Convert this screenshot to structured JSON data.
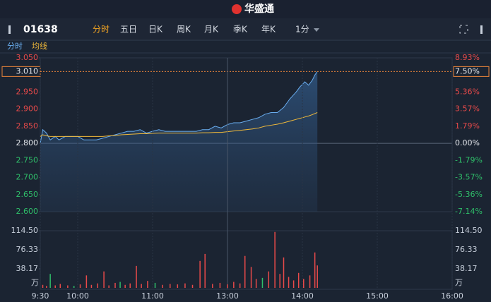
{
  "header": {
    "logo": "华盛通"
  },
  "toolbar": {
    "code": "01638",
    "tabs": [
      "分时",
      "五日",
      "日K",
      "周K",
      "月K",
      "季K",
      "年K",
      "1分"
    ],
    "active": 0
  },
  "chart_data": [
    {
      "type": "line",
      "x": [
        0,
        2,
        5,
        8,
        12,
        15,
        20,
        25,
        30,
        35,
        40,
        45,
        50,
        55,
        60,
        65,
        70,
        75,
        80,
        85,
        90,
        95,
        100,
        105,
        110,
        115,
        120,
        125,
        130,
        135,
        140,
        145,
        150,
        155,
        160,
        165,
        170,
        175,
        180,
        185,
        190,
        195,
        200,
        205,
        208,
        212,
        215,
        218,
        220,
        222
      ],
      "series": [
        {
          "name": "分时",
          "color": "#6aaef0",
          "values": [
            2.8,
            2.84,
            2.83,
            2.81,
            2.82,
            2.81,
            2.82,
            2.82,
            2.82,
            2.81,
            2.81,
            2.81,
            2.815,
            2.82,
            2.825,
            2.83,
            2.835,
            2.835,
            2.84,
            2.83,
            2.835,
            2.84,
            2.835,
            2.835,
            2.835,
            2.835,
            2.835,
            2.835,
            2.84,
            2.84,
            2.85,
            2.845,
            2.855,
            2.86,
            2.86,
            2.865,
            2.87,
            2.875,
            2.885,
            2.89,
            2.89,
            2.905,
            2.93,
            2.95,
            2.965,
            2.98,
            2.97,
            2.985,
            3.0,
            3.01
          ]
        },
        {
          "name": "均线",
          "color": "#f0b93a",
          "values": [
            2.82,
            2.825,
            2.822,
            2.82,
            2.82,
            2.82,
            2.82,
            2.82,
            2.82,
            2.82,
            2.82,
            2.82,
            2.82,
            2.822,
            2.823,
            2.825,
            2.826,
            2.827,
            2.828,
            2.828,
            2.829,
            2.83,
            2.83,
            2.83,
            2.83,
            2.83,
            2.83,
            2.83,
            2.831,
            2.831,
            2.832,
            2.832,
            2.834,
            2.836,
            2.838,
            2.84,
            2.842,
            2.845,
            2.85,
            2.853,
            2.856,
            2.86,
            2.865,
            2.87,
            2.873,
            2.877,
            2.88,
            2.884,
            2.887,
            2.89
          ]
        }
      ],
      "xlim": [
        0,
        330
      ],
      "ylim": [
        2.6,
        3.05
      ],
      "yticks": [
        {
          "value": 3.05,
          "label": "3.050"
        },
        {
          "value": 2.95,
          "label": "2.950"
        },
        {
          "value": 2.9,
          "label": "2.900"
        },
        {
          "value": 2.85,
          "label": "2.850"
        },
        {
          "value": 2.8,
          "label": "2.800"
        },
        {
          "value": 2.75,
          "label": "2.750"
        },
        {
          "value": 2.7,
          "label": "2.700"
        },
        {
          "value": 2.65,
          "label": "2.650"
        },
        {
          "value": 2.6,
          "label": "2.600"
        }
      ],
      "y2lim": [
        -7.14,
        8.93
      ],
      "y2ticks": [
        {
          "value": 8.93,
          "label": "8.93%"
        },
        {
          "value": 5.36,
          "label": "5.36%"
        },
        {
          "value": 3.57,
          "label": "3.57%"
        },
        {
          "value": 1.79,
          "label": "1.79%"
        },
        {
          "value": 0,
          "label": "0.00%"
        },
        {
          "value": -1.79,
          "label": "-1.79%"
        },
        {
          "value": -3.57,
          "label": "-3.57%"
        },
        {
          "value": -5.36,
          "label": "-5.36%"
        },
        {
          "value": -7.14,
          "label": "-7.14%"
        }
      ],
      "current": {
        "price": {
          "value": 3.01,
          "label": "3.010"
        },
        "pct": {
          "value": 7.5,
          "label": "7.50%"
        },
        "color": "#e8833a"
      }
    },
    {
      "type": "bar",
      "unit": "万",
      "x": [
        2,
        5,
        8,
        12,
        16,
        22,
        27,
        32,
        37,
        41,
        46,
        51,
        55,
        60,
        64,
        68,
        72,
        77,
        81,
        86,
        92,
        98,
        104,
        110,
        116,
        122,
        128,
        132,
        138,
        144,
        150,
        155,
        160,
        164,
        169,
        173,
        178,
        183,
        188,
        192,
        195,
        199,
        203,
        207,
        211,
        216,
        220,
        222
      ],
      "values": [
        6,
        4,
        28,
        5,
        8,
        5,
        4,
        7,
        25,
        6,
        9,
        33,
        5,
        10,
        12,
        6,
        9,
        44,
        8,
        14,
        10,
        6,
        8,
        7,
        9,
        6,
        54,
        68,
        8,
        10,
        7,
        12,
        9,
        64,
        42,
        18,
        20,
        33,
        112,
        28,
        61,
        22,
        15,
        30,
        18,
        25,
        71,
        45
      ],
      "colors": [
        "#e84a4a",
        "#e84a4a",
        "#2fbf6a",
        "#e84a4a",
        "#e84a4a",
        "#e84a4a",
        "#2fbf6a",
        "#e84a4a",
        "#e84a4a",
        "#e84a4a",
        "#e84a4a",
        "#e84a4a",
        "#e84a4a",
        "#e84a4a",
        "#2fbf6a",
        "#e84a4a",
        "#e84a4a",
        "#e84a4a",
        "#e84a4a",
        "#e84a4a",
        "#2fbf6a",
        "#e84a4a",
        "#e84a4a",
        "#e84a4a",
        "#e84a4a",
        "#e84a4a",
        "#e84a4a",
        "#e84a4a",
        "#e84a4a",
        "#e84a4a",
        "#e84a4a",
        "#e84a4a",
        "#e84a4a",
        "#e84a4a",
        "#e84a4a",
        "#e84a4a",
        "#2fbf6a",
        "#e84a4a",
        "#e84a4a",
        "#e84a4a",
        "#e84a4a",
        "#e84a4a",
        "#e84a4a",
        "#e84a4a",
        "#e84a4a",
        "#e84a4a",
        "#e84a4a",
        "#e84a4a"
      ],
      "xlim": [
        0,
        330
      ],
      "ylim": [
        0,
        114.5
      ],
      "yticks": [
        {
          "value": 114.5,
          "label": "114.50"
        },
        {
          "value": 76.33,
          "label": "76.33"
        },
        {
          "value": 38.17,
          "label": "38.17"
        }
      ],
      "xticks": [
        {
          "value": 0,
          "label": "9:30"
        },
        {
          "value": 30,
          "label": "10:00"
        },
        {
          "value": 90,
          "label": "11:00"
        },
        {
          "value": 150,
          "label": "13:00"
        },
        {
          "value": 210,
          "label": "14:00"
        },
        {
          "value": 270,
          "label": "15:00"
        },
        {
          "value": 330,
          "label": "16:00"
        }
      ]
    }
  ]
}
